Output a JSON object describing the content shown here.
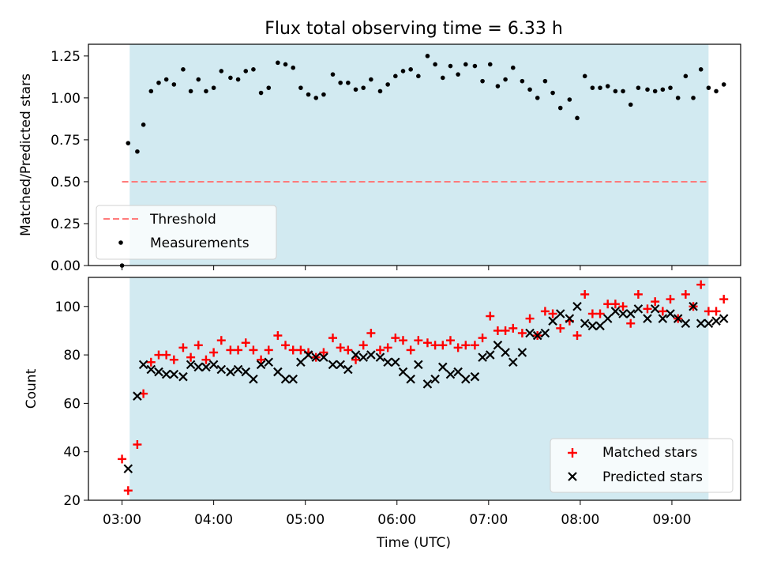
{
  "chart_data": [
    {
      "type": "scatter",
      "title": "Flux total observing time = 6.33 h",
      "xlabel": "",
      "ylabel": "Matched/Predicted stars",
      "ylim": [
        0,
        1.32
      ],
      "yticks": [
        "0.00",
        "0.25",
        "0.50",
        "0.75",
        "1.00",
        "1.25"
      ],
      "xlim": [
        "02:38",
        "09:45"
      ],
      "shaded_span": [
        "03:05",
        "09:24"
      ],
      "shade_color": "#add8e6",
      "legend_position": "lower-left",
      "threshold": {
        "name": "Threshold",
        "value": 0.5,
        "x_range": [
          "03:00",
          "09:24"
        ],
        "color": "#ff7b7b"
      },
      "series": [
        {
          "name": "Measurements",
          "color": "#000000",
          "points": [
            [
              "03:00",
              0.0
            ],
            [
              "03:04",
              0.73
            ],
            [
              "03:10",
              0.68
            ],
            [
              "03:14",
              0.84
            ],
            [
              "03:19",
              1.04
            ],
            [
              "03:24",
              1.09
            ],
            [
              "03:29",
              1.11
            ],
            [
              "03:34",
              1.08
            ],
            [
              "03:40",
              1.17
            ],
            [
              "03:45",
              1.04
            ],
            [
              "03:50",
              1.11
            ],
            [
              "03:55",
              1.04
            ],
            [
              "04:00",
              1.06
            ],
            [
              "04:05",
              1.16
            ],
            [
              "04:11",
              1.12
            ],
            [
              "04:16",
              1.11
            ],
            [
              "04:21",
              1.16
            ],
            [
              "04:26",
              1.17
            ],
            [
              "04:31",
              1.03
            ],
            [
              "04:36",
              1.06
            ],
            [
              "04:42",
              1.21
            ],
            [
              "04:47",
              1.2
            ],
            [
              "04:52",
              1.18
            ],
            [
              "04:57",
              1.06
            ],
            [
              "05:02",
              1.02
            ],
            [
              "05:07",
              1.0
            ],
            [
              "05:12",
              1.02
            ],
            [
              "05:18",
              1.14
            ],
            [
              "05:23",
              1.09
            ],
            [
              "05:28",
              1.09
            ],
            [
              "05:33",
              1.05
            ],
            [
              "05:38",
              1.06
            ],
            [
              "05:43",
              1.11
            ],
            [
              "05:49",
              1.04
            ],
            [
              "05:54",
              1.08
            ],
            [
              "05:59",
              1.13
            ],
            [
              "06:04",
              1.16
            ],
            [
              "06:09",
              1.17
            ],
            [
              "06:14",
              1.13
            ],
            [
              "06:20",
              1.25
            ],
            [
              "06:25",
              1.2
            ],
            [
              "06:30",
              1.12
            ],
            [
              "06:35",
              1.19
            ],
            [
              "06:40",
              1.14
            ],
            [
              "06:45",
              1.2
            ],
            [
              "06:51",
              1.19
            ],
            [
              "06:56",
              1.1
            ],
            [
              "07:01",
              1.2
            ],
            [
              "07:06",
              1.07
            ],
            [
              "07:11",
              1.11
            ],
            [
              "07:16",
              1.18
            ],
            [
              "07:22",
              1.1
            ],
            [
              "07:27",
              1.05
            ],
            [
              "07:32",
              1.0
            ],
            [
              "07:37",
              1.1
            ],
            [
              "07:42",
              1.03
            ],
            [
              "07:47",
              0.94
            ],
            [
              "07:53",
              0.99
            ],
            [
              "07:58",
              0.88
            ],
            [
              "08:03",
              1.13
            ],
            [
              "08:08",
              1.06
            ],
            [
              "08:13",
              1.06
            ],
            [
              "08:18",
              1.07
            ],
            [
              "08:23",
              1.04
            ],
            [
              "08:28",
              1.04
            ],
            [
              "08:33",
              0.96
            ],
            [
              "08:38",
              1.06
            ],
            [
              "08:44",
              1.05
            ],
            [
              "08:49",
              1.04
            ],
            [
              "08:54",
              1.05
            ],
            [
              "08:59",
              1.06
            ],
            [
              "09:04",
              1.0
            ],
            [
              "09:09",
              1.13
            ],
            [
              "09:14",
              1.0
            ],
            [
              "09:19",
              1.17
            ],
            [
              "09:24",
              1.06
            ],
            [
              "09:29",
              1.04
            ],
            [
              "09:34",
              1.08
            ]
          ]
        }
      ]
    },
    {
      "type": "scatter",
      "title": "",
      "xlabel": "Time (UTC)",
      "ylabel": "Count",
      "ylim": [
        20,
        112
      ],
      "yticks": [
        "20",
        "40",
        "60",
        "80",
        "100"
      ],
      "xlim": [
        "02:38",
        "09:45"
      ],
      "xticks": [
        "03:00",
        "04:00",
        "05:00",
        "06:00",
        "07:00",
        "08:00",
        "09:00"
      ],
      "shaded_span": [
        "03:05",
        "09:24"
      ],
      "shade_color": "#add8e6",
      "legend_position": "lower-right",
      "series": [
        {
          "name": "Matched stars",
          "marker": "+",
          "color": "#ff0000",
          "points": [
            [
              "03:00",
              37
            ],
            [
              "03:04",
              24
            ],
            [
              "03:10",
              43
            ],
            [
              "03:14",
              64
            ],
            [
              "03:19",
              77
            ],
            [
              "03:24",
              80
            ],
            [
              "03:29",
              80
            ],
            [
              "03:34",
              78
            ],
            [
              "03:40",
              83
            ],
            [
              "03:45",
              79
            ],
            [
              "03:50",
              84
            ],
            [
              "03:55",
              78
            ],
            [
              "04:00",
              81
            ],
            [
              "04:05",
              86
            ],
            [
              "04:11",
              82
            ],
            [
              "04:16",
              82
            ],
            [
              "04:21",
              85
            ],
            [
              "04:26",
              82
            ],
            [
              "04:31",
              78
            ],
            [
              "04:36",
              82
            ],
            [
              "04:42",
              88
            ],
            [
              "04:47",
              84
            ],
            [
              "04:52",
              82
            ],
            [
              "04:57",
              82
            ],
            [
              "05:02",
              81
            ],
            [
              "05:07",
              79
            ],
            [
              "05:12",
              81
            ],
            [
              "05:18",
              87
            ],
            [
              "05:23",
              83
            ],
            [
              "05:28",
              82
            ],
            [
              "05:33",
              78
            ],
            [
              "05:38",
              84
            ],
            [
              "05:43",
              89
            ],
            [
              "05:49",
              82
            ],
            [
              "05:54",
              83
            ],
            [
              "05:59",
              87
            ],
            [
              "06:04",
              86
            ],
            [
              "06:09",
              82
            ],
            [
              "06:14",
              86
            ],
            [
              "06:20",
              85
            ],
            [
              "06:25",
              84
            ],
            [
              "06:30",
              84
            ],
            [
              "06:35",
              86
            ],
            [
              "06:40",
              83
            ],
            [
              "06:45",
              84
            ],
            [
              "06:51",
              84
            ],
            [
              "06:56",
              87
            ],
            [
              "07:01",
              96
            ],
            [
              "07:06",
              90
            ],
            [
              "07:11",
              90
            ],
            [
              "07:16",
              91
            ],
            [
              "07:22",
              89
            ],
            [
              "07:27",
              95
            ],
            [
              "07:32",
              88
            ],
            [
              "07:37",
              98
            ],
            [
              "07:42",
              97
            ],
            [
              "07:47",
              91
            ],
            [
              "07:53",
              94
            ],
            [
              "07:58",
              88
            ],
            [
              "08:03",
              105
            ],
            [
              "08:08",
              97
            ],
            [
              "08:13",
              97
            ],
            [
              "08:18",
              101
            ],
            [
              "08:23",
              101
            ],
            [
              "08:28",
              100
            ],
            [
              "08:33",
              93
            ],
            [
              "08:38",
              105
            ],
            [
              "08:44",
              99
            ],
            [
              "08:49",
              102
            ],
            [
              "08:54",
              98
            ],
            [
              "08:59",
              103
            ],
            [
              "09:04",
              95
            ],
            [
              "09:09",
              105
            ],
            [
              "09:14",
              100
            ],
            [
              "09:19",
              109
            ],
            [
              "09:24",
              98
            ],
            [
              "09:29",
              98
            ],
            [
              "09:34",
              103
            ]
          ]
        },
        {
          "name": "Predicted stars",
          "marker": "x",
          "color": "#000000",
          "points": [
            [
              "03:04",
              33
            ],
            [
              "03:10",
              63
            ],
            [
              "03:14",
              76
            ],
            [
              "03:19",
              74
            ],
            [
              "03:24",
              73
            ],
            [
              "03:29",
              72
            ],
            [
              "03:34",
              72
            ],
            [
              "03:40",
              71
            ],
            [
              "03:45",
              76
            ],
            [
              "03:50",
              75
            ],
            [
              "03:55",
              75
            ],
            [
              "04:00",
              76
            ],
            [
              "04:05",
              74
            ],
            [
              "04:11",
              73
            ],
            [
              "04:16",
              74
            ],
            [
              "04:21",
              73
            ],
            [
              "04:26",
              70
            ],
            [
              "04:31",
              76
            ],
            [
              "04:36",
              77
            ],
            [
              "04:42",
              73
            ],
            [
              "04:47",
              70
            ],
            [
              "04:52",
              70
            ],
            [
              "04:57",
              77
            ],
            [
              "05:02",
              80
            ],
            [
              "05:07",
              79
            ],
            [
              "05:12",
              79
            ],
            [
              "05:18",
              76
            ],
            [
              "05:23",
              76
            ],
            [
              "05:28",
              74
            ],
            [
              "05:33",
              80
            ],
            [
              "05:38",
              79
            ],
            [
              "05:43",
              80
            ],
            [
              "05:49",
              79
            ],
            [
              "05:54",
              77
            ],
            [
              "05:59",
              77
            ],
            [
              "06:04",
              73
            ],
            [
              "06:09",
              70
            ],
            [
              "06:14",
              76
            ],
            [
              "06:20",
              68
            ],
            [
              "06:25",
              70
            ],
            [
              "06:30",
              75
            ],
            [
              "06:35",
              72
            ],
            [
              "06:40",
              73
            ],
            [
              "06:45",
              70
            ],
            [
              "06:51",
              71
            ],
            [
              "06:56",
              79
            ],
            [
              "07:01",
              80
            ],
            [
              "07:06",
              84
            ],
            [
              "07:11",
              81
            ],
            [
              "07:16",
              77
            ],
            [
              "07:22",
              81
            ],
            [
              "07:27",
              89
            ],
            [
              "07:32",
              88
            ],
            [
              "07:37",
              89
            ],
            [
              "07:42",
              94
            ],
            [
              "07:47",
              97
            ],
            [
              "07:53",
              95
            ],
            [
              "07:58",
              100
            ],
            [
              "08:03",
              93
            ],
            [
              "08:08",
              92
            ],
            [
              "08:13",
              92
            ],
            [
              "08:18",
              95
            ],
            [
              "08:23",
              98
            ],
            [
              "08:28",
              97
            ],
            [
              "08:33",
              97
            ],
            [
              "08:38",
              99
            ],
            [
              "08:44",
              95
            ],
            [
              "08:49",
              99
            ],
            [
              "08:54",
              95
            ],
            [
              "08:59",
              97
            ],
            [
              "09:04",
              95
            ],
            [
              "09:09",
              93
            ],
            [
              "09:14",
              100
            ],
            [
              "09:19",
              93
            ],
            [
              "09:24",
              93
            ],
            [
              "09:29",
              94
            ],
            [
              "09:34",
              95
            ]
          ]
        }
      ]
    }
  ]
}
